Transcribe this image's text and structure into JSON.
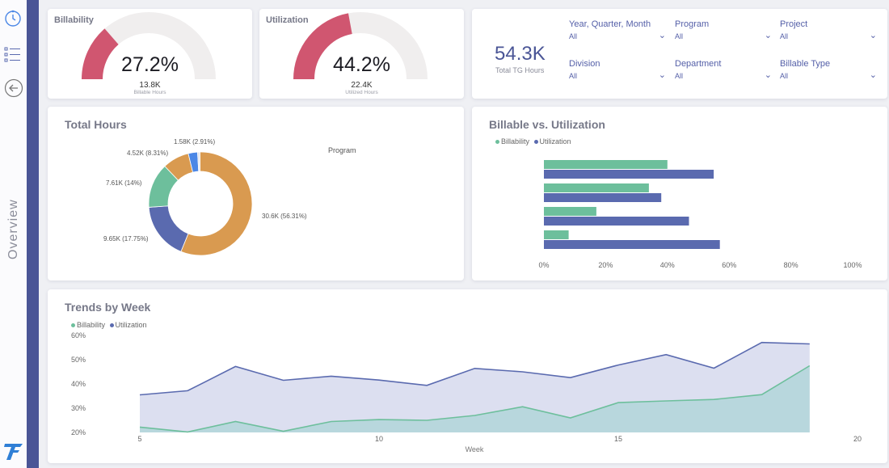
{
  "nav": {
    "section_label": "Overview",
    "accent": "#4a5596"
  },
  "gauges": [
    {
      "title": "Billability",
      "value": "27.2%",
      "fraction": 0.272,
      "sub_value": "13.8K",
      "sub_label": "Billable Hours",
      "color": "#d05670"
    },
    {
      "title": "Utilization",
      "value": "44.2%",
      "fraction": 0.442,
      "sub_value": "22.4K",
      "sub_label": "Utilized Hours",
      "color": "#d05670"
    }
  ],
  "kpi": {
    "value": "54.3K",
    "label": "Total TG Hours"
  },
  "filters": [
    {
      "label": "Year, Quarter, Month",
      "value": "All"
    },
    {
      "label": "Program",
      "value": "All"
    },
    {
      "label": "Project",
      "value": "All"
    },
    {
      "label": "Division",
      "value": "All"
    },
    {
      "label": "Department",
      "value": "All"
    },
    {
      "label": "Billable Type",
      "value": "All"
    }
  ],
  "total_hours": {
    "title": "Total Hours",
    "legend_title": "Program",
    "chart_data": {
      "type": "pie",
      "slices": [
        {
          "label": "30.6K (56.31%)",
          "value": 56.31,
          "color": "#d99a50"
        },
        {
          "label": "9.65K (17.75%)",
          "value": 17.75,
          "color": "#5a6aaf"
        },
        {
          "label": "7.61K (14%)",
          "value": 14.0,
          "color": "#6dbf9c"
        },
        {
          "label": "4.52K (8.31%)",
          "value": 8.31,
          "color": "#d99a50"
        },
        {
          "label": "1.58K (2.91%)",
          "value": 2.91,
          "color": "#4b87e6"
        },
        {
          "label": "",
          "value": 0.72,
          "color": "#e5e5ea"
        }
      ]
    }
  },
  "billable_vs_util": {
    "title": "Billable vs. Utilization",
    "legend": [
      {
        "name": "Billability",
        "color": "#6dbf9c"
      },
      {
        "name": "Utilization",
        "color": "#5a6aaf"
      }
    ],
    "chart_data": {
      "type": "bar",
      "orientation": "horizontal",
      "x_ticks": [
        "0%",
        "20%",
        "40%",
        "60%",
        "80%",
        "100%"
      ],
      "xlim": [
        0,
        100
      ],
      "series": [
        {
          "name": "Billability",
          "values": [
            40,
            34,
            17,
            8
          ]
        },
        {
          "name": "Utilization",
          "values": [
            55,
            38,
            47,
            57
          ]
        }
      ]
    }
  },
  "trends": {
    "title": "Trends by Week",
    "legend": [
      {
        "name": "Billability",
        "color": "#6dbf9c"
      },
      {
        "name": "Utilization",
        "color": "#5a6aaf"
      }
    ],
    "chart_data": {
      "type": "area",
      "x": [
        5,
        6,
        7,
        8,
        9,
        10,
        11,
        12,
        13,
        14,
        15,
        16,
        17,
        18,
        19
      ],
      "series": [
        {
          "name": "Billability",
          "values": [
            22.2,
            20.2,
            24.5,
            20.5,
            24.5,
            25.3,
            25,
            27,
            30.6,
            26,
            32.3,
            33,
            33.6,
            35.6,
            47.5
          ]
        },
        {
          "name": "Utilization",
          "values": [
            35.5,
            37.2,
            47.2,
            41.5,
            43.2,
            41.6,
            39.4,
            46.4,
            45,
            42.6,
            47.8,
            52.1,
            46.5,
            57.1,
            56.5
          ]
        }
      ],
      "xlabel": "Week",
      "x_ticks": [
        "5",
        "10",
        "15",
        "20"
      ],
      "y_ticks": [
        "20%",
        "30%",
        "40%",
        "50%",
        "60%"
      ],
      "xlim": [
        5,
        20
      ],
      "ylim": [
        20,
        60
      ]
    }
  }
}
